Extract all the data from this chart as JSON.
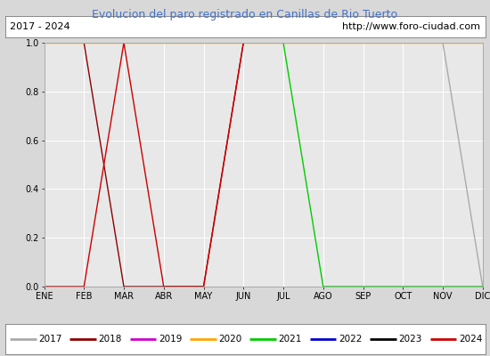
{
  "title": "Evolucion del paro registrado en Canillas de Rio Tuerto",
  "title_color": "#4472C4",
  "subtitle_left": "2017 - 2024",
  "subtitle_right": "http://www.foro-ciudad.com",
  "background_color": "#d8d8d8",
  "plot_background": "#e8e8e8",
  "month_labels": [
    "ENE",
    "FEB",
    "MAR",
    "ABR",
    "MAY",
    "JUN",
    "JUL",
    "AGO",
    "SEP",
    "OCT",
    "NOV",
    "DIC"
  ],
  "ylim": [
    0.0,
    1.0
  ],
  "yticks": [
    0.0,
    0.2,
    0.4,
    0.6,
    0.8,
    1.0
  ],
  "series": {
    "2017": {
      "color": "#aaaaaa",
      "data_x": [
        1,
        2,
        3,
        4,
        5,
        6,
        7,
        8,
        9,
        10,
        11,
        12
      ],
      "data_y": [
        1.0,
        1.0,
        1.0,
        1.0,
        1.0,
        1.0,
        1.0,
        1.0,
        1.0,
        1.0,
        1.0,
        0.0
      ]
    },
    "2018": {
      "color": "#8b0000",
      "data_x": [
        1,
        2,
        3,
        4,
        5,
        6,
        7,
        8,
        9,
        10,
        11,
        12
      ],
      "data_y": [
        1.0,
        1.0,
        0.0,
        0.0,
        0.0,
        1.0,
        1.0,
        1.0,
        1.0,
        1.0,
        1.0,
        1.0
      ]
    },
    "2019": {
      "color": "#cc00cc",
      "data_x": [],
      "data_y": []
    },
    "2020": {
      "color": "#ffa500",
      "data_x": [
        1,
        2,
        3,
        4,
        5,
        6,
        7,
        8,
        9,
        10,
        11,
        12
      ],
      "data_y": [
        1.0,
        1.0,
        1.0,
        1.0,
        1.0,
        1.0,
        1.0,
        1.0,
        1.0,
        1.0,
        1.0,
        1.0
      ]
    },
    "2021": {
      "color": "#00cc00",
      "data_x": [
        1,
        2,
        3,
        4,
        5,
        6,
        7,
        8,
        9,
        10,
        11,
        12
      ],
      "data_y": [
        1.0,
        1.0,
        1.0,
        1.0,
        1.0,
        1.0,
        1.0,
        0.0,
        0.0,
        0.0,
        0.0,
        0.0
      ]
    },
    "2022": {
      "color": "#0000cc",
      "data_x": [],
      "data_y": []
    },
    "2023": {
      "color": "#000000",
      "data_x": [],
      "data_y": []
    },
    "2024": {
      "color": "#cc0000",
      "data_x": [
        1,
        2,
        3,
        4,
        5,
        6
      ],
      "data_y": [
        0.0,
        0.0,
        1.0,
        0.0,
        0.0,
        1.0
      ]
    }
  },
  "legend_order": [
    "2017",
    "2018",
    "2019",
    "2020",
    "2021",
    "2022",
    "2023",
    "2024"
  ],
  "legend_colors": {
    "2017": "#aaaaaa",
    "2018": "#8b0000",
    "2019": "#cc00cc",
    "2020": "#ffa500",
    "2021": "#00cc00",
    "2022": "#0000cc",
    "2023": "#000000",
    "2024": "#cc0000"
  },
  "fig_width": 5.5,
  "fig_height": 4.0,
  "dpi": 100
}
